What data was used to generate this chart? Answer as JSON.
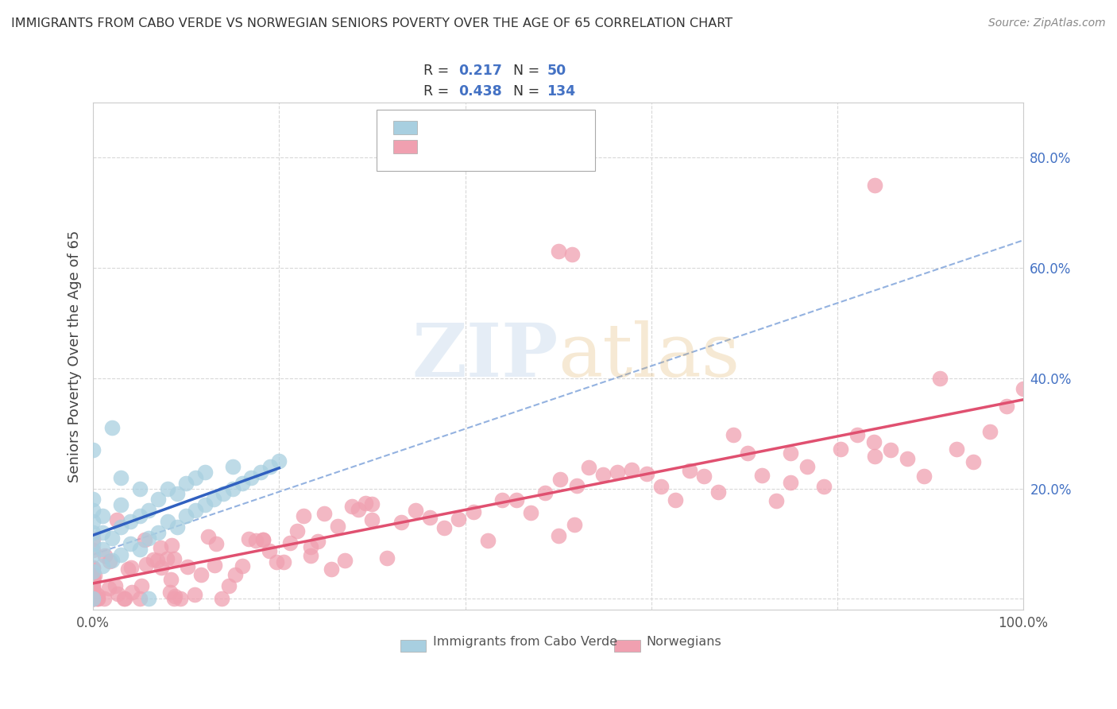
{
  "title": "IMMIGRANTS FROM CABO VERDE VS NORWEGIAN SENIORS POVERTY OVER THE AGE OF 65 CORRELATION CHART",
  "source": "Source: ZipAtlas.com",
  "ylabel": "Seniors Poverty Over the Age of 65",
  "xlim": [
    0,
    1.0
  ],
  "ylim": [
    -0.02,
    0.9
  ],
  "legend_blue_r": "0.217",
  "legend_blue_n": "50",
  "legend_pink_r": "0.438",
  "legend_pink_n": "134",
  "blue_scatter_color": "#a8cfe0",
  "pink_scatter_color": "#f0a0b0",
  "blue_line_color": "#3060c0",
  "pink_line_color": "#e05070",
  "dashed_line_color": "#88aadd",
  "tick_label_color": "#4472c4",
  "background_color": "#ffffff",
  "grid_color": "#d8d8d8",
  "watermark_color": "#ccddee"
}
